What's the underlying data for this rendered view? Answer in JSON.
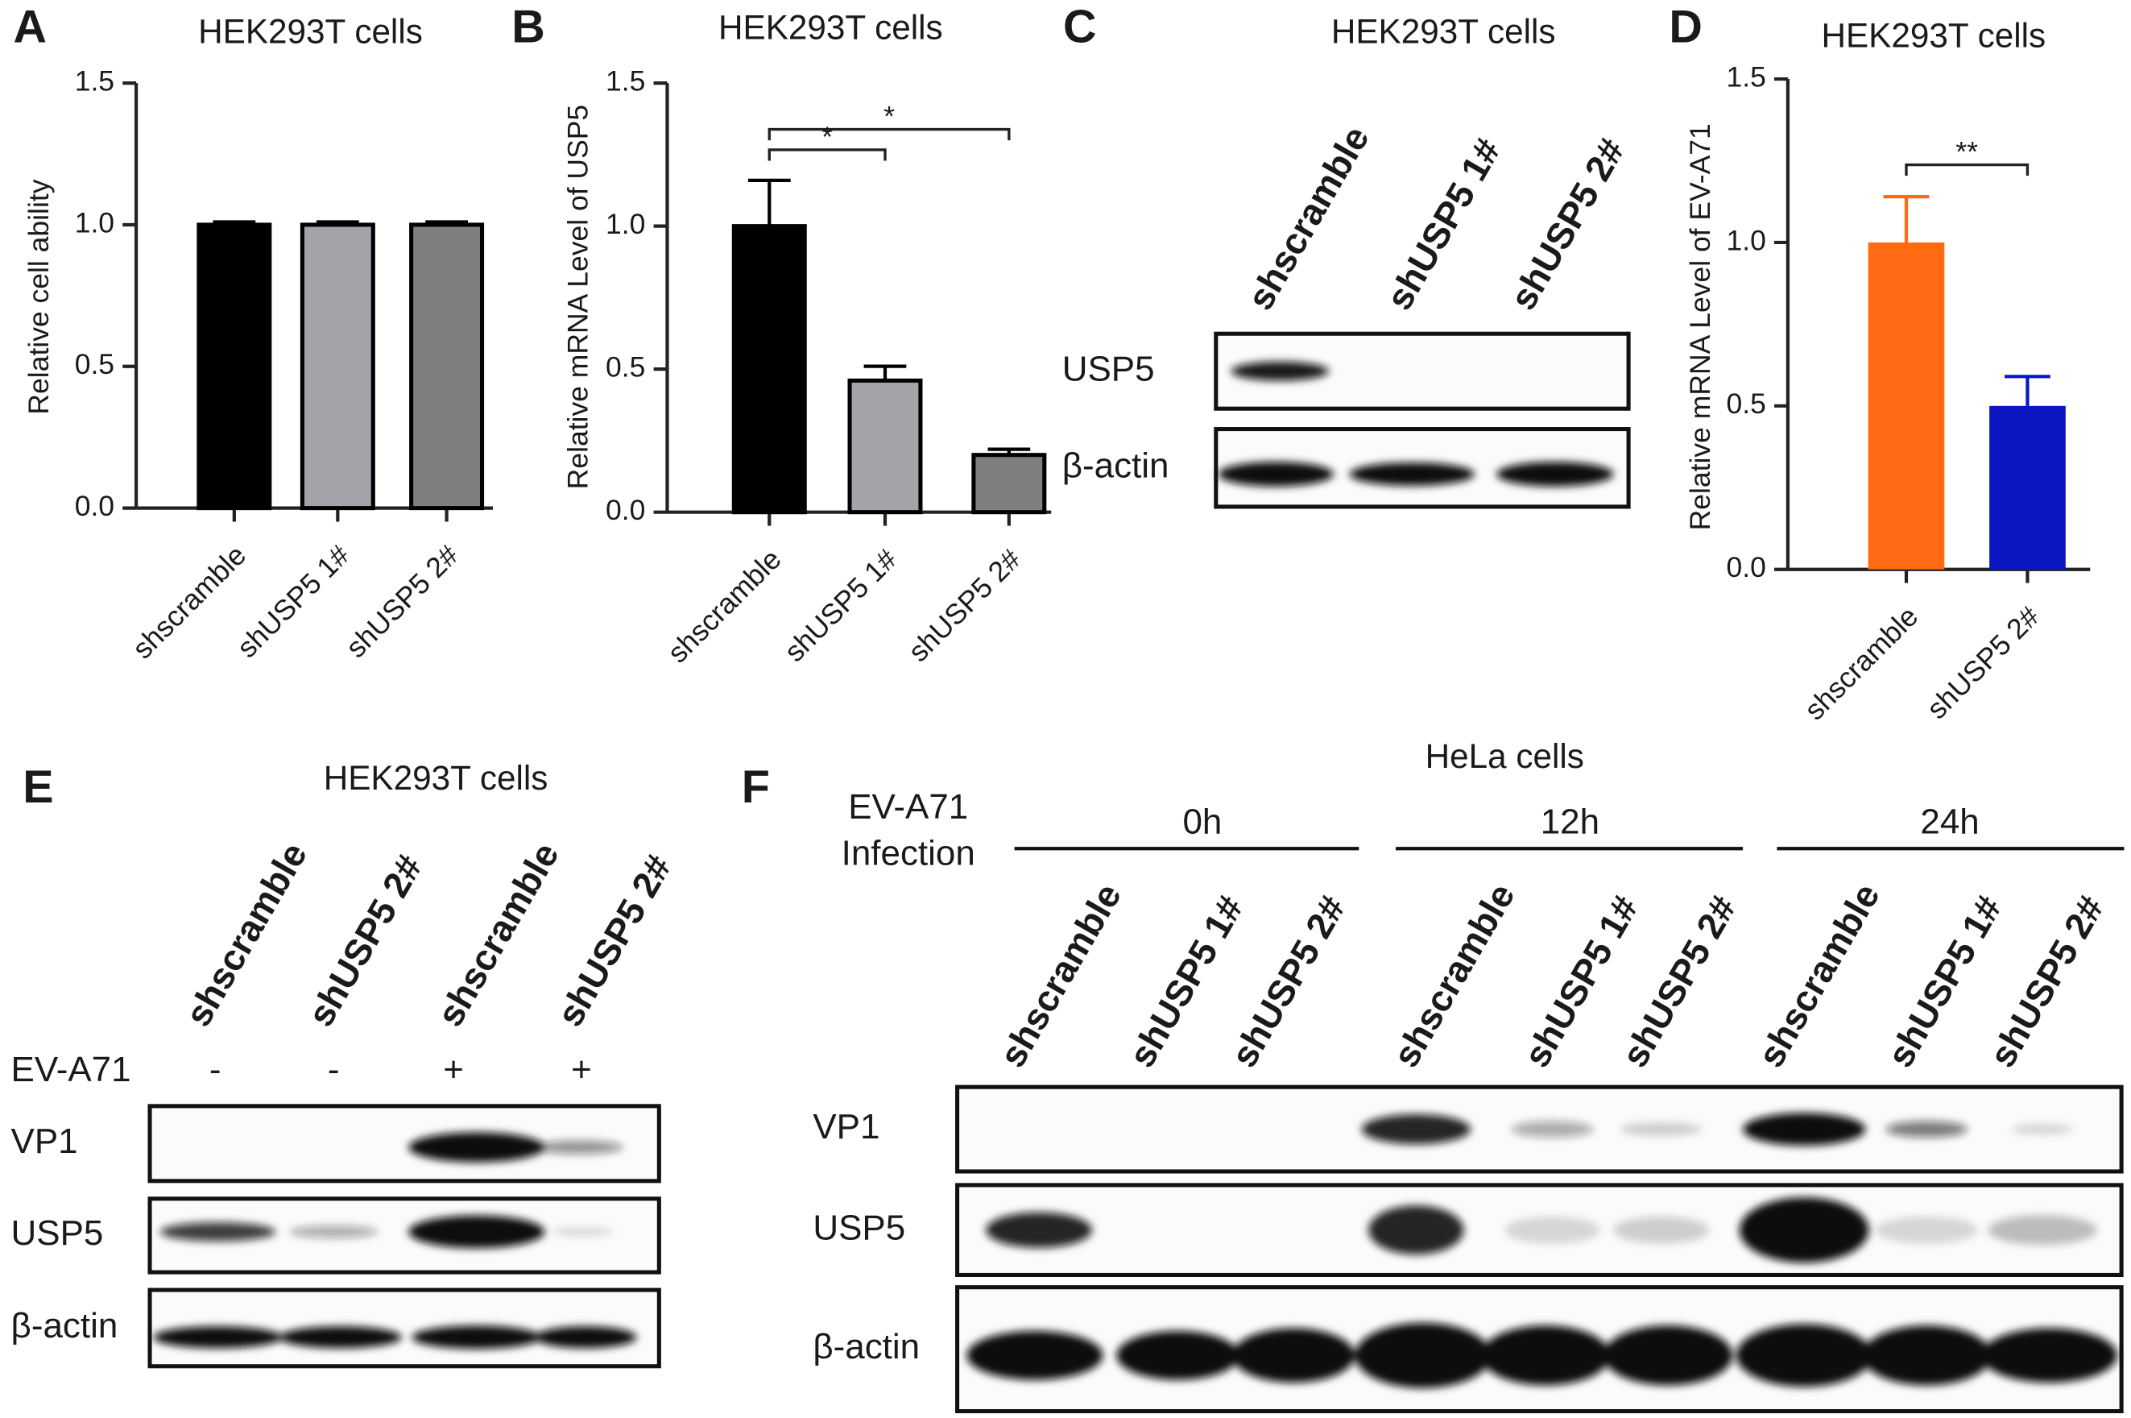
{
  "chart_data": [
    {
      "type": "bar",
      "panel": "A",
      "title": "HEK293T cells",
      "ylabel": "Relative cell ability",
      "categories": [
        "shscramble",
        "shUSP5 1#",
        "shUSP5 2#"
      ],
      "values": [
        1.0,
        1.0,
        1.0
      ],
      "errors": [
        0.01,
        0.01,
        0.01
      ],
      "colors": [
        "#000000",
        "#a3a3aa",
        "#7f7f7f"
      ],
      "ylim": [
        0,
        1.5
      ],
      "yticks": [
        {
          "value": 0,
          "label": "0.0"
        },
        {
          "value": 0.5,
          "label": "0.5"
        },
        {
          "value": 1,
          "label": "1.0"
        },
        {
          "value": 1.5,
          "label": "1.5"
        }
      ]
    },
    {
      "type": "bar",
      "panel": "B",
      "title": "HEK293T cells",
      "ylabel": "Relative mRNA Level of USP5",
      "categories": [
        "shscramble",
        "shUSP5 1#",
        "shUSP5 2#"
      ],
      "values": [
        1.0,
        0.46,
        0.2
      ],
      "errors": [
        0.16,
        0.05,
        0.02
      ],
      "colors": [
        "#000000",
        "#a3a3aa",
        "#7f7f7f"
      ],
      "ylim": [
        0,
        1.5
      ],
      "yticks": [
        {
          "value": 0,
          "label": "0.0"
        },
        {
          "value": 0.5,
          "label": "0.5"
        },
        {
          "value": 1,
          "label": "1.0"
        },
        {
          "value": 1.5,
          "label": "1.5"
        }
      ],
      "annotations": [
        {
          "text": "*",
          "between": [
            0,
            1
          ]
        },
        {
          "text": "*",
          "between": [
            0,
            2
          ]
        }
      ]
    },
    {
      "type": "bar",
      "panel": "D",
      "title": "HEK293T cells",
      "ylabel": "Relative mRNA Level of EV-A71",
      "categories": [
        "shscramble",
        "shUSP5 2#"
      ],
      "values": [
        1.0,
        0.5
      ],
      "errors": [
        0.14,
        0.09
      ],
      "colors": [
        "#ff6a13",
        "#0b16c2"
      ],
      "ylim": [
        0,
        1.5
      ],
      "yticks": [
        {
          "value": 0,
          "label": "0.0"
        },
        {
          "value": 0.5,
          "label": "0.5"
        },
        {
          "value": 1,
          "label": "1.0"
        },
        {
          "value": 1.5,
          "label": "1.5"
        }
      ],
      "annotations": [
        {
          "text": "**",
          "between": [
            0,
            1
          ]
        }
      ]
    }
  ],
  "blots": [
    {
      "panel": "C",
      "title": "HEK293T cells",
      "lanes": [
        "shscramble",
        "shUSP5  1#",
        "shUSP5  2#"
      ],
      "rows": [
        "USP5",
        "β-actin"
      ]
    },
    {
      "panel": "E",
      "title": "HEK293T cells",
      "lanes": [
        "shscramble",
        "shUSP5  2#",
        "shscramble",
        "shUSP5  2#"
      ],
      "treatment": {
        "label": "EV-A71",
        "values": [
          "-",
          "-",
          "+",
          "+"
        ]
      },
      "rows": [
        "VP1",
        "USP5",
        "β-actin"
      ]
    },
    {
      "panel": "F",
      "title": "HeLa cells",
      "treatment_label": [
        "EV-A71",
        "Infection"
      ],
      "groups": [
        "0h",
        "12h",
        "24h"
      ],
      "lanes": [
        "shscramble",
        "shUSP5  1#",
        "shUSP5  2#",
        "shscramble",
        "shUSP5  1#",
        "shUSP5  2#",
        "shscramble",
        "shUSP5  1#",
        "shUSP5  2#"
      ],
      "rows": [
        "VP1",
        "USP5",
        "β-actin"
      ]
    }
  ]
}
